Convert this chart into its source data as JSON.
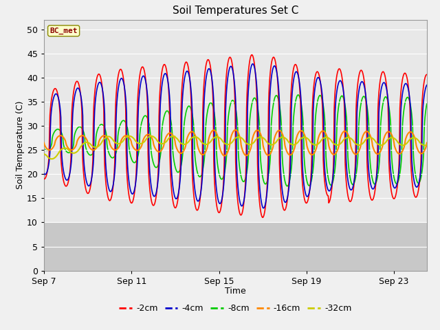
{
  "title": "Soil Temperatures Set C",
  "xlabel": "Time",
  "ylabel": "Soil Temperature (C)",
  "ylim": [
    0,
    52
  ],
  "yticks": [
    0,
    5,
    10,
    15,
    20,
    25,
    30,
    35,
    40,
    45,
    50
  ],
  "xtick_labels": [
    "Sep 7",
    "Sep 11",
    "Sep 15",
    "Sep 19",
    "Sep 23"
  ],
  "xtick_positions": [
    0,
    4,
    8,
    12,
    16
  ],
  "label_tag": "BC_met",
  "colors": {
    "-2cm": "#ff0000",
    "-4cm": "#0000cc",
    "-8cm": "#00cc00",
    "-16cm": "#ff8800",
    "-32cm": "#cccc00"
  },
  "bg_color_plot": "#e8e8e8",
  "bg_color_below": "#c8c8c8",
  "threshold_y": 10,
  "n_days": 17.5,
  "fig_width": 6.4,
  "fig_height": 4.8,
  "dpi": 100
}
